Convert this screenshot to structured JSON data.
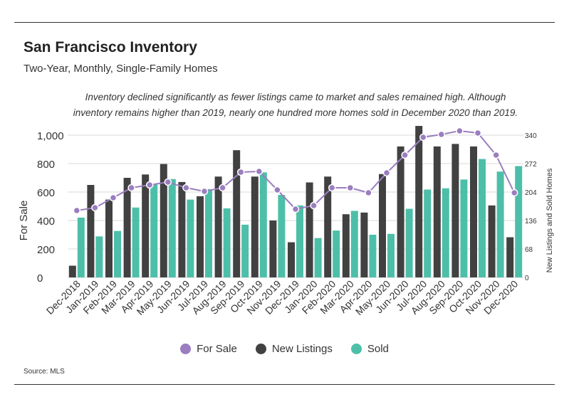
{
  "header": {
    "title": "San Francisco Inventory",
    "subtitle": "Two-Year, Monthly, Single-Family Homes"
  },
  "annotation": {
    "line1": "Inventory declined significantly as fewer listings came to market and sales remained high. Although",
    "line2": "inventory remains higher than 2019, nearly one hundred more homes sold in December 2020 than 2019."
  },
  "footer": {
    "source": "Source:  MLS"
  },
  "colors": {
    "for_sale": "#9a7ebf",
    "new_listings": "#414141",
    "sold": "#4dbfa8",
    "grid": "#d8d8d8"
  },
  "chart_data": {
    "type": "bar",
    "categories": [
      "Dec-2018",
      "Jan-2019",
      "Feb-2019",
      "Mar-2019",
      "Apr-2019",
      "May-2019",
      "Jun-2019",
      "Jul-2019",
      "Aug-2019",
      "Sep-2019",
      "Oct-2019",
      "Nov-2019",
      "Dec-2019",
      "Jan-2020",
      "Feb-2020",
      "Mar-2020",
      "Apr-2020",
      "May-2020",
      "Jun-2020",
      "Jul-2020",
      "Aug-2020",
      "Sep-2020",
      "Oct-2020",
      "Nov-2020",
      "Dec-2020"
    ],
    "ylabel_left": "For Sale",
    "ylabel_right": "New Listings and Sold Homes",
    "y_left": {
      "min": 0,
      "max": 1000,
      "ticks": [
        "0",
        "200",
        "400",
        "600",
        "800",
        "1,000"
      ]
    },
    "y_right": {
      "min": 0,
      "max": 340,
      "ticks": [
        "0",
        "68",
        "136",
        "204",
        "272",
        "340"
      ]
    },
    "grid": true,
    "legend_position": "bottom",
    "series": [
      {
        "name": "For Sale",
        "type": "line",
        "axis": "left",
        "values": [
          470,
          490,
          560,
          630,
          650,
          670,
          630,
          605,
          630,
          740,
          745,
          615,
          480,
          505,
          630,
          630,
          595,
          735,
          860,
          985,
          1005,
          1030,
          1015,
          860,
          595
        ]
      },
      {
        "name": "New Listings",
        "type": "bar",
        "axis": "right",
        "values": [
          28,
          221,
          186,
          238,
          246,
          271,
          228,
          194,
          241,
          304,
          241,
          136,
          84,
          227,
          241,
          151,
          155,
          247,
          313,
          362,
          313,
          319,
          313,
          172,
          96
        ]
      },
      {
        "name": "Sold",
        "type": "bar",
        "axis": "right",
        "values": [
          143,
          98,
          111,
          167,
          222,
          235,
          186,
          211,
          165,
          126,
          251,
          197,
          172,
          94,
          112,
          159,
          102,
          104,
          164,
          210,
          213,
          234,
          283,
          253,
          266
        ]
      }
    ]
  }
}
